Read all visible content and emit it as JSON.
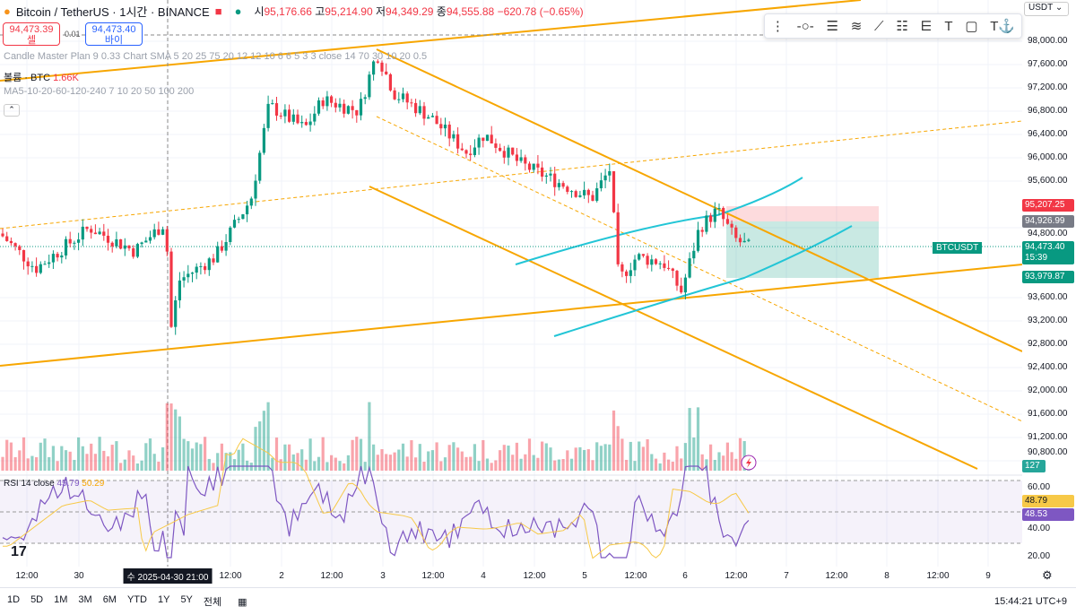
{
  "header": {
    "title": "Bitcoin / TetherUS · 1시간 · BINANCE",
    "open_label": "시",
    "open": "95,176.66",
    "high_label": "고",
    "high": "95,214.90",
    "low_label": "저",
    "low": "94,349.29",
    "close_label": "종",
    "close": "94,555.88",
    "change": "−620.78 (−0.65%)"
  },
  "trade": {
    "sell_price": "94,473.39",
    "sell_label": "셀",
    "spread": "0.01",
    "buy_price": "94,473.40",
    "buy_label": "바이"
  },
  "indicators": {
    "candle_master": "Candle Master Plan 9 0.33 Chart SMA 5 20 25 75 20 12 12 10 6 6 5 3 3 close 14 70 30 10 20 0.5",
    "volume_label": "볼륨 · BTC",
    "volume_value": "1.66K",
    "ma": "MA5-10-20-60-120-240 7 10 20 50 100 200",
    "rsi_label": "RSI 14 close",
    "rsi_value": "45.79",
    "rsi_ma": "50.29"
  },
  "price_axis": {
    "currency": "USDT",
    "ticks": [
      "98,000.00",
      "97,600.00",
      "97,200.00",
      "96,800.00",
      "96,400.00",
      "96,000.00",
      "95,600.00",
      "94,800.00",
      "93,600.00",
      "93,200.00",
      "92,800.00",
      "92,400.00",
      "92,000.00",
      "91,600.00",
      "91,200.00",
      "90,800.00"
    ],
    "stop_label": "95,207.25",
    "entry_label": "94,926.99",
    "symbol": "BTCUSDT",
    "last_price": "94,473.40",
    "countdown": "15:39",
    "target_label": "93,979.87",
    "volume_label": "127",
    "rsi_ticks": [
      "60.00",
      "40.00",
      "20.00"
    ],
    "rsi_a": "48.79",
    "rsi_b": "48.53"
  },
  "time_axis": {
    "labels": [
      "12:00",
      "30",
      "수 2025-04-30  21:00",
      "12:00",
      "2",
      "12:00",
      "3",
      "12:00",
      "4",
      "12:00",
      "5",
      "12:00",
      "6",
      "12:00",
      "7",
      "12:00",
      "8",
      "12:00",
      "9"
    ]
  },
  "bottom_bar": {
    "ranges": [
      "1D",
      "5D",
      "1M",
      "3M",
      "6M",
      "YTD",
      "1Y",
      "5Y",
      "전체"
    ],
    "clock": "15:44:21 UTC+9"
  },
  "price_path": [
    [
      0,
      94700
    ],
    [
      40,
      94100
    ],
    [
      100,
      94800
    ],
    [
      150,
      94400
    ],
    [
      185,
      94900
    ],
    [
      190,
      93000
    ],
    [
      200,
      93900
    ],
    [
      240,
      94300
    ],
    [
      280,
      95300
    ],
    [
      300,
      96900
    ],
    [
      340,
      96500
    ],
    [
      360,
      97000
    ],
    [
      400,
      96800
    ],
    [
      420,
      97800
    ],
    [
      440,
      97100
    ],
    [
      480,
      96700
    ],
    [
      520,
      96100
    ],
    [
      540,
      96400
    ],
    [
      580,
      95900
    ],
    [
      620,
      95600
    ],
    [
      660,
      95300
    ],
    [
      680,
      95800
    ],
    [
      690,
      93900
    ],
    [
      710,
      94300
    ],
    [
      740,
      94200
    ],
    [
      760,
      93700
    ],
    [
      780,
      94800
    ],
    [
      800,
      95100
    ],
    [
      820,
      94600
    ],
    [
      835,
      94473
    ]
  ],
  "colors": {
    "up": "#089981",
    "down": "#f23645",
    "trend": "#f7a600",
    "channel": "#22c5d6"
  }
}
